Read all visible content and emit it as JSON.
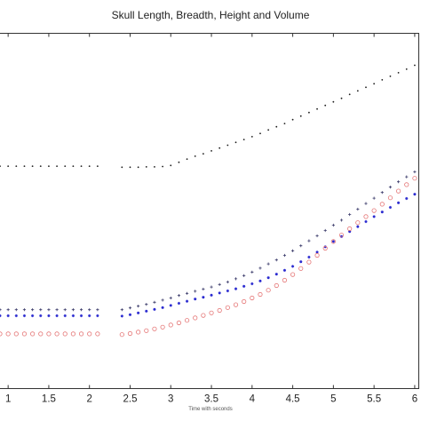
{
  "chart_data": {
    "type": "scatter",
    "title": "Skull Length, Breadth, Height and Volume",
    "xlabel": "Time with seconds",
    "ylabel": "",
    "xlim": [
      0.9,
      6.05
    ],
    "ylim": [
      0,
      1
    ],
    "grid": false,
    "x_ticks": [
      1,
      1.5,
      2,
      2.5,
      3,
      3.5,
      4,
      4.5,
      5,
      5.5,
      6
    ],
    "x_tick_labels": [
      "1",
      "1.5",
      "2",
      "2.5",
      "3",
      "3.5",
      "4",
      "4.5",
      "5",
      "5.5",
      "6"
    ],
    "series": [
      {
        "marker": "dot",
        "color": "#1a1a1a",
        "x": [
          0.9,
          1.0,
          1.1,
          1.2,
          1.3,
          1.4,
          1.5,
          1.6,
          1.7,
          1.8,
          1.9,
          2.0,
          2.1,
          2.4,
          2.5,
          2.6,
          2.7,
          2.8,
          2.9,
          3.0,
          3.1,
          3.2,
          3.3,
          3.4,
          3.5,
          3.6,
          3.7,
          3.8,
          3.9,
          4.0,
          4.1,
          4.2,
          4.3,
          4.4,
          4.5,
          4.6,
          4.7,
          4.8,
          4.9,
          5.0,
          5.1,
          5.2,
          5.3,
          5.4,
          5.5,
          5.6,
          5.7,
          5.8,
          5.9,
          6.0
        ],
        "y": [
          0.626,
          0.626,
          0.626,
          0.626,
          0.626,
          0.626,
          0.626,
          0.626,
          0.626,
          0.626,
          0.626,
          0.626,
          0.626,
          0.623,
          0.623,
          0.623,
          0.624,
          0.624,
          0.625,
          0.628,
          0.637,
          0.646,
          0.654,
          0.661,
          0.669,
          0.677,
          0.685,
          0.693,
          0.701,
          0.709,
          0.718,
          0.728,
          0.737,
          0.746,
          0.757,
          0.767,
          0.777,
          0.787,
          0.797,
          0.807,
          0.817,
          0.828,
          0.838,
          0.848,
          0.858,
          0.869,
          0.879,
          0.889,
          0.899,
          0.91
        ]
      },
      {
        "marker": "plus",
        "color": "#3a3a6a",
        "x": [
          0.9,
          1.0,
          1.1,
          1.2,
          1.3,
          1.4,
          1.5,
          1.6,
          1.7,
          1.8,
          1.9,
          2.0,
          2.1,
          2.4,
          2.5,
          2.6,
          2.7,
          2.8,
          2.9,
          3.0,
          3.1,
          3.2,
          3.3,
          3.4,
          3.5,
          3.6,
          3.7,
          3.8,
          3.9,
          4.0,
          4.1,
          4.2,
          4.3,
          4.4,
          4.5,
          4.6,
          4.7,
          4.8,
          4.9,
          5.0,
          5.1,
          5.2,
          5.3,
          5.4,
          5.5,
          5.6,
          5.7,
          5.8,
          5.9,
          6.0
        ],
        "y": [
          0.222,
          0.222,
          0.222,
          0.222,
          0.222,
          0.222,
          0.222,
          0.222,
          0.222,
          0.222,
          0.222,
          0.222,
          0.222,
          0.222,
          0.227,
          0.232,
          0.237,
          0.243,
          0.249,
          0.255,
          0.262,
          0.268,
          0.274,
          0.28,
          0.286,
          0.293,
          0.3,
          0.309,
          0.318,
          0.328,
          0.339,
          0.351,
          0.362,
          0.375,
          0.388,
          0.402,
          0.416,
          0.43,
          0.445,
          0.46,
          0.474,
          0.49,
          0.505,
          0.521,
          0.536,
          0.552,
          0.567,
          0.582,
          0.596,
          0.61
        ]
      },
      {
        "marker": "asterisk",
        "color": "#2a2ad0",
        "x": [
          0.9,
          1.0,
          1.1,
          1.2,
          1.3,
          1.4,
          1.5,
          1.6,
          1.7,
          1.8,
          1.9,
          2.0,
          2.1,
          2.4,
          2.5,
          2.6,
          2.7,
          2.8,
          2.9,
          3.0,
          3.1,
          3.2,
          3.3,
          3.4,
          3.5,
          3.6,
          3.7,
          3.8,
          3.9,
          4.0,
          4.1,
          4.2,
          4.3,
          4.4,
          4.5,
          4.6,
          4.7,
          4.8,
          4.9,
          5.0,
          5.1,
          5.2,
          5.3,
          5.4,
          5.5,
          5.6,
          5.7,
          5.8,
          5.9,
          6.0
        ],
        "y": [
          0.205,
          0.205,
          0.205,
          0.205,
          0.205,
          0.205,
          0.205,
          0.205,
          0.205,
          0.205,
          0.205,
          0.205,
          0.205,
          0.204,
          0.208,
          0.213,
          0.218,
          0.223,
          0.228,
          0.234,
          0.24,
          0.246,
          0.252,
          0.257,
          0.263,
          0.269,
          0.275,
          0.281,
          0.288,
          0.295,
          0.303,
          0.312,
          0.322,
          0.333,
          0.344,
          0.357,
          0.37,
          0.384,
          0.399,
          0.414,
          0.428,
          0.442,
          0.456,
          0.47,
          0.484,
          0.497,
          0.51,
          0.523,
          0.535,
          0.547
        ]
      },
      {
        "marker": "circle",
        "color": "#e57777",
        "x": [
          0.9,
          1.0,
          1.1,
          1.2,
          1.3,
          1.4,
          1.5,
          1.6,
          1.7,
          1.8,
          1.9,
          2.0,
          2.1,
          2.4,
          2.5,
          2.6,
          2.7,
          2.8,
          2.9,
          3.0,
          3.1,
          3.2,
          3.3,
          3.4,
          3.5,
          3.6,
          3.7,
          3.8,
          3.9,
          4.0,
          4.1,
          4.2,
          4.3,
          4.4,
          4.5,
          4.6,
          4.7,
          4.8,
          4.9,
          5.0,
          5.1,
          5.2,
          5.3,
          5.4,
          5.5,
          5.6,
          5.7,
          5.8,
          5.9,
          6.0
        ],
        "y": [
          0.154,
          0.154,
          0.154,
          0.154,
          0.154,
          0.154,
          0.154,
          0.154,
          0.154,
          0.154,
          0.154,
          0.154,
          0.154,
          0.152,
          0.155,
          0.159,
          0.163,
          0.168,
          0.173,
          0.179,
          0.185,
          0.192,
          0.199,
          0.206,
          0.213,
          0.22,
          0.228,
          0.236,
          0.245,
          0.255,
          0.265,
          0.277,
          0.29,
          0.305,
          0.321,
          0.338,
          0.356,
          0.375,
          0.395,
          0.414,
          0.432,
          0.45,
          0.467,
          0.484,
          0.501,
          0.519,
          0.537,
          0.556,
          0.574,
          0.592
        ]
      }
    ]
  }
}
